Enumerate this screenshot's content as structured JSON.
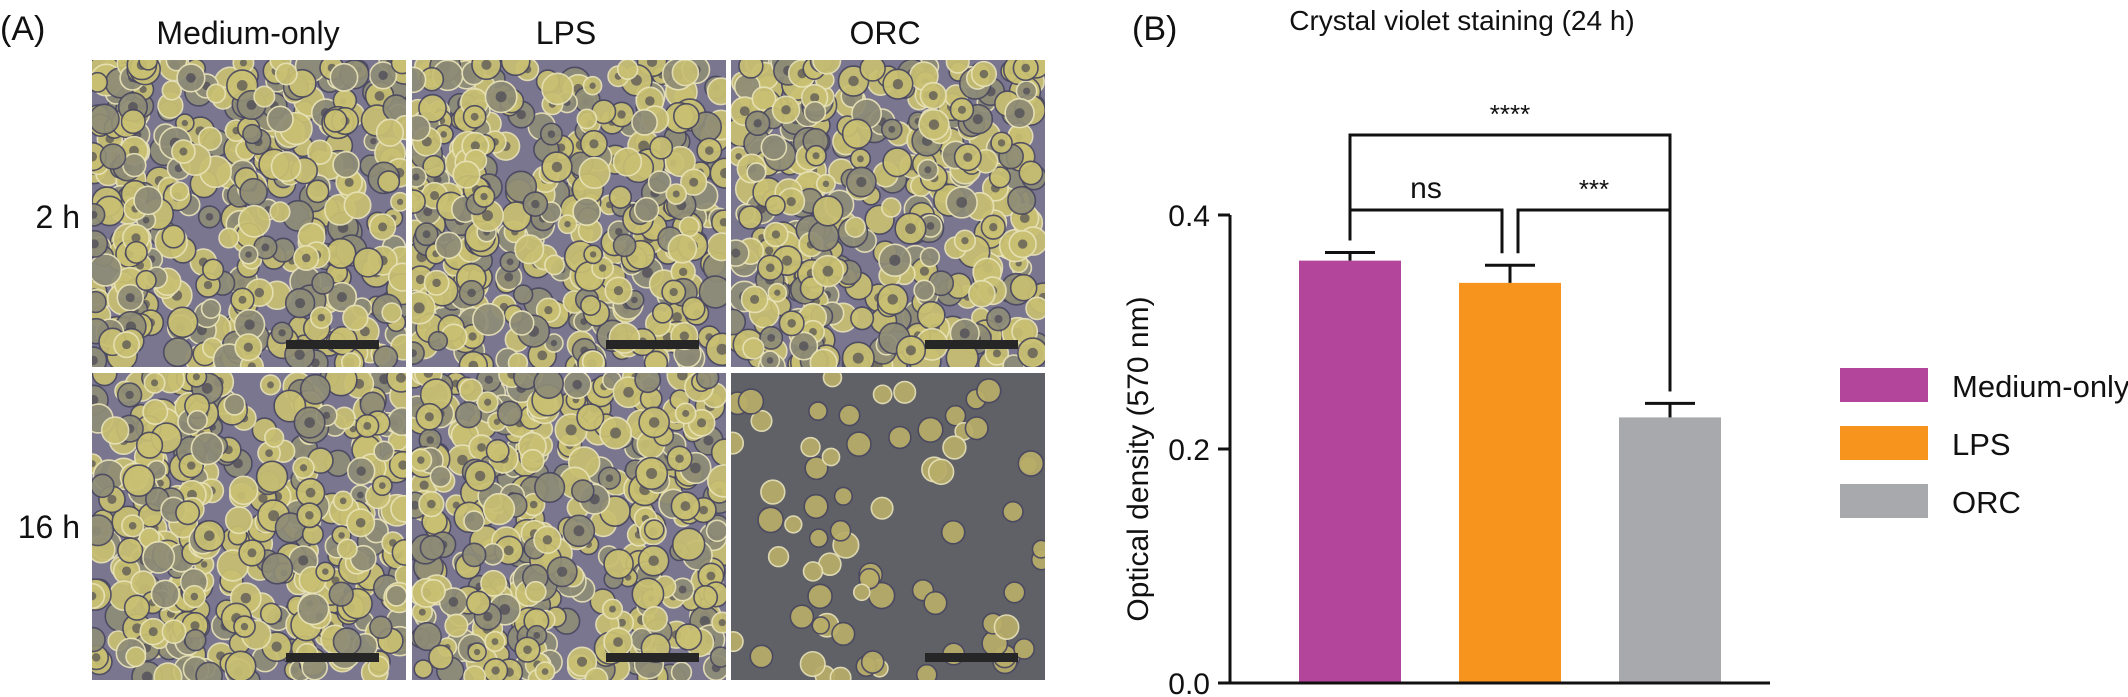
{
  "panel_a": {
    "label": "(A)",
    "columns": [
      "Medium-only",
      "LPS",
      "ORC"
    ],
    "rows": [
      "2 h",
      "16 h"
    ],
    "micrographs": [
      {
        "row": "2 h",
        "column": "Medium-only",
        "density": "dense"
      },
      {
        "row": "2 h",
        "column": "LPS",
        "density": "dense"
      },
      {
        "row": "2 h",
        "column": "ORC",
        "density": "dense"
      },
      {
        "row": "16 h",
        "column": "Medium-only",
        "density": "dense"
      },
      {
        "row": "16 h",
        "column": "LPS",
        "density": "dense"
      },
      {
        "row": "16 h",
        "column": "ORC",
        "density": "sparse"
      }
    ],
    "colors": {
      "cell_background": "#7a7690",
      "cell_body": "#c9c072",
      "sparse_background": "#5f6166",
      "scale_bar": "#262626"
    }
  },
  "panel_b": {
    "label": "(B)",
    "chart_data": {
      "type": "bar",
      "title": "Crystal violet staining (24 h)",
      "xlabel": "",
      "ylabel": "Optical density (570 nm)",
      "categories": [
        "Medium-only",
        "LPS",
        "ORC"
      ],
      "values": [
        0.361,
        0.342,
        0.227
      ],
      "errors": [
        0.007,
        0.015,
        0.012
      ],
      "colors": [
        "#b3459a",
        "#f7941d",
        "#a7a9ac"
      ],
      "ylim": [
        0.0,
        0.4
      ],
      "yticks": [
        0.0,
        0.2,
        0.4
      ],
      "ytick_labels": [
        "0.0",
        "0.2",
        "0.4"
      ],
      "legend": {
        "placement": "right",
        "entries": [
          {
            "label": "Medium-only",
            "color": "#b3459a"
          },
          {
            "label": "LPS",
            "color": "#f7941d"
          },
          {
            "label": "ORC",
            "color": "#a7a9ac"
          }
        ]
      },
      "significance": [
        {
          "from": "Medium-only",
          "to": "LPS",
          "label": "ns"
        },
        {
          "from": "LPS",
          "to": "ORC",
          "label": "***"
        },
        {
          "from": "Medium-only",
          "to": "ORC",
          "label": "****"
        }
      ],
      "grid": false
    }
  }
}
